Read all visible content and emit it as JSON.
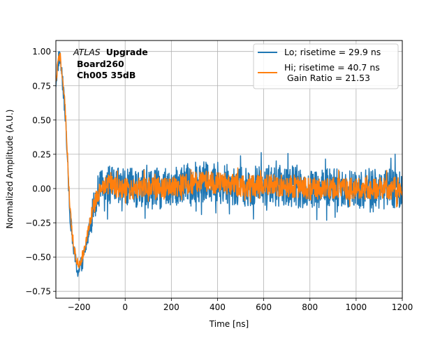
{
  "chart_data": {
    "type": "line",
    "title": "",
    "xlabel": "Time [ns]",
    "ylabel": "Normalized Amplitude (A.U.)",
    "xlim": [
      -300,
      1200
    ],
    "ylim": [
      -0.8,
      1.08
    ],
    "xticks": [
      -200,
      0,
      200,
      400,
      600,
      800,
      1000,
      1200
    ],
    "xtick_labels": [
      "−200",
      "0",
      "200",
      "400",
      "600",
      "800",
      "1000",
      "1200"
    ],
    "yticks": [
      1.0,
      0.75,
      0.5,
      0.25,
      0.0,
      -0.25,
      -0.5,
      -0.75
    ],
    "ytick_labels": [
      "1.00",
      "0.75",
      "0.50",
      "0.25",
      "0.00",
      "−0.25",
      "−0.50",
      "−0.75"
    ],
    "grid": true,
    "legend_position": "top-right",
    "annotation": {
      "line1_italic": "ATLAS",
      "line1_bold": "Upgrade",
      "line2": "Board260",
      "line3": "Ch005 35dB"
    },
    "series": [
      {
        "name": "Lo; risetime = 29.9 ns",
        "color": "#1f77b4",
        "noise_amplitude": 0.15,
        "x": [
          -300,
          -285,
          -275,
          -260,
          -250,
          -240,
          -230,
          -220,
          -210,
          -200,
          -190,
          -180,
          -170,
          -160,
          -150,
          -140,
          -130,
          -120,
          -110,
          -100,
          -90,
          -80,
          -70,
          -60,
          -50,
          -40,
          -30,
          -20,
          -10,
          0,
          25,
          50,
          100,
          200,
          300,
          400,
          500,
          600,
          700,
          800,
          900,
          1000,
          1100,
          1200
        ],
        "y": [
          0.78,
          0.98,
          0.85,
          0.55,
          0.2,
          -0.15,
          -0.35,
          -0.48,
          -0.58,
          -0.6,
          -0.56,
          -0.5,
          -0.42,
          -0.33,
          -0.24,
          -0.16,
          -0.09,
          -0.03,
          0.0,
          0.02,
          0.03,
          0.03,
          0.02,
          0.02,
          0.01,
          0.01,
          0.0,
          0.0,
          0.0,
          0.0,
          0.0,
          0.0,
          0.0,
          0.0,
          0.05,
          0.04,
          0.02,
          0.02,
          0.02,
          0.0,
          0.0,
          0.0,
          0.0,
          0.0
        ]
      },
      {
        "name": "Hi; risetime = 40.7 ns\n Gain Ratio = 21.53",
        "color": "#ff7f0e",
        "noise_amplitude": 0.08,
        "x": [
          -300,
          -285,
          -275,
          -260,
          -250,
          -240,
          -230,
          -220,
          -210,
          -200,
          -190,
          -180,
          -170,
          -160,
          -150,
          -140,
          -130,
          -120,
          -110,
          -100,
          -90,
          -80,
          -70,
          -60,
          -50,
          -40,
          -30,
          -20,
          -10,
          0,
          25,
          50,
          100,
          200,
          300,
          400,
          500,
          600,
          700,
          800,
          900,
          1000,
          1100,
          1200
        ],
        "y": [
          0.8,
          0.97,
          0.88,
          0.6,
          0.25,
          -0.12,
          -0.32,
          -0.45,
          -0.53,
          -0.55,
          -0.52,
          -0.46,
          -0.38,
          -0.3,
          -0.22,
          -0.15,
          -0.09,
          -0.04,
          -0.01,
          0.01,
          0.02,
          0.02,
          0.02,
          0.01,
          0.01,
          0.01,
          0.0,
          0.0,
          0.0,
          0.0,
          0.0,
          0.0,
          0.0,
          0.0,
          0.05,
          0.04,
          0.02,
          0.02,
          0.02,
          0.0,
          0.0,
          0.0,
          0.0,
          0.0
        ]
      }
    ]
  }
}
